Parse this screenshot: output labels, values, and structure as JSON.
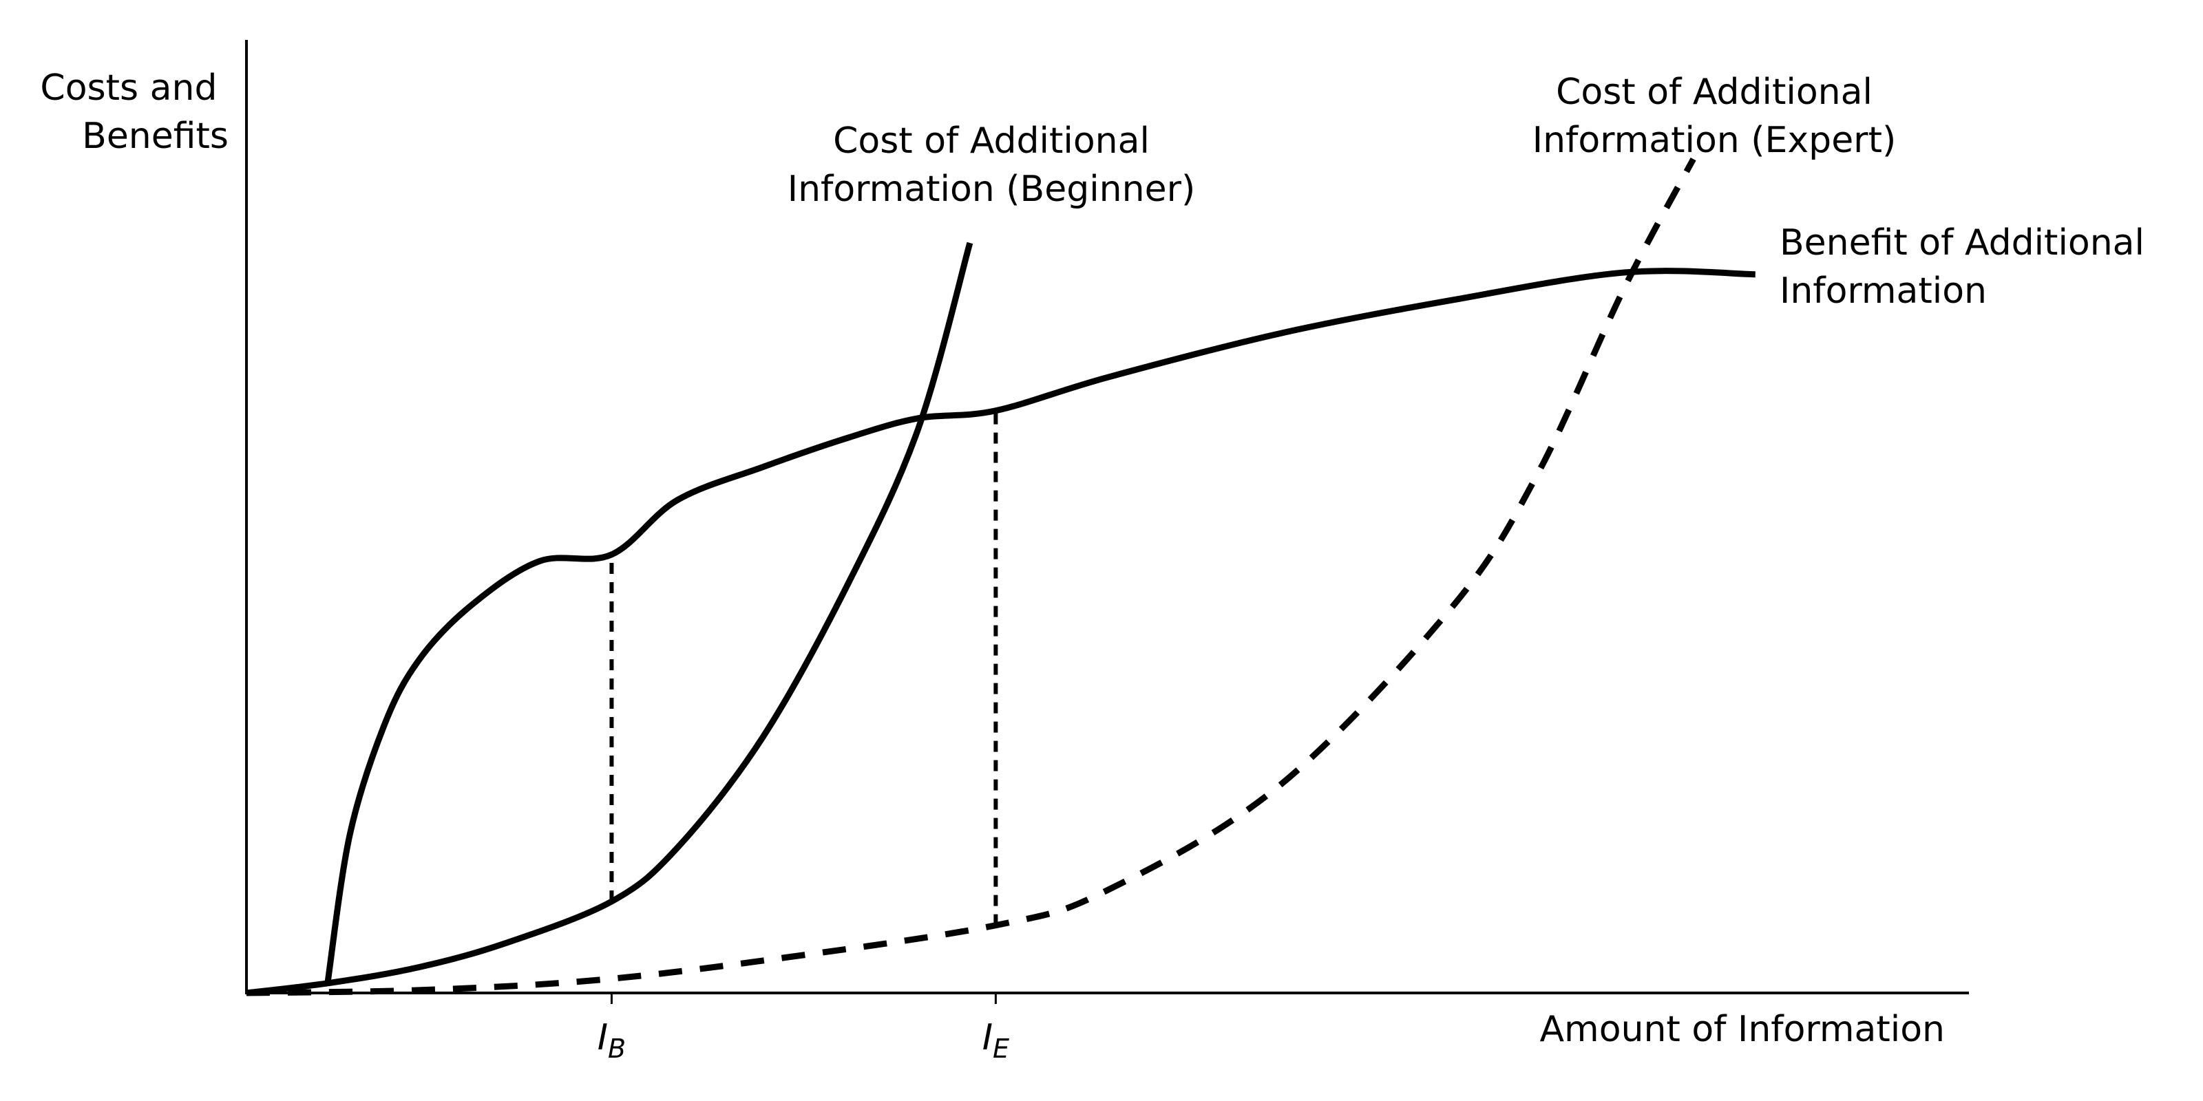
{
  "chart_data": {
    "type": "line",
    "title": "",
    "xlabel": "Amount of Information",
    "ylabel": [
      "Costs and",
      "Benefits"
    ],
    "grid": false,
    "x_range": [
      0,
      10
    ],
    "y_range": [
      0,
      10
    ],
    "x_ticks": [
      {
        "label": "I",
        "sub": "B",
        "x": 2.12
      },
      {
        "label": "I",
        "sub": "E",
        "x": 4.35
      }
    ],
    "series": [
      {
        "name": [
          "Benefit of Additional",
          "Information"
        ],
        "style": "solid",
        "x": [
          0.47,
          0.6,
          0.8,
          1.0,
          1.3,
          1.7,
          2.12,
          2.5,
          3.0,
          3.5,
          3.9,
          4.35,
          5.0,
          6.0,
          7.0,
          8.0,
          8.76
        ],
        "y": [
          0.09,
          1.66,
          2.81,
          3.49,
          4.06,
          4.53,
          4.6,
          5.17,
          5.52,
          5.83,
          6.03,
          6.11,
          6.46,
          6.92,
          7.27,
          7.56,
          7.54
        ]
      },
      {
        "name": [
          "Cost of Additional",
          "Information (Beginner)"
        ],
        "style": "solid",
        "x": [
          0.0,
          0.5,
          1.0,
          1.5,
          2.12,
          2.5,
          3.0,
          3.5,
          3.9,
          4.2
        ],
        "y": [
          0.0,
          0.11,
          0.27,
          0.52,
          0.96,
          1.52,
          2.69,
          4.32,
          5.92,
          7.87
        ]
      },
      {
        "name": [
          "Cost of Additional",
          "Information (Expert)"
        ],
        "style": "dashed",
        "x": [
          0.0,
          1.0,
          2.0,
          3.0,
          4.35,
          5.0,
          6.0,
          7.0,
          7.5,
          8.0,
          8.4
        ],
        "y": [
          0.0,
          0.03,
          0.13,
          0.34,
          0.71,
          1.08,
          2.18,
          4.05,
          5.46,
          7.4,
          8.75
        ]
      }
    ],
    "series_labels": [
      {
        "series": 0,
        "anchor": "start"
      },
      {
        "series": 1,
        "anchor": "middle"
      },
      {
        "series": 2,
        "anchor": "middle"
      }
    ],
    "reference_lines": [
      {
        "x": 2.12,
        "y_from": 0.96,
        "y_to": 4.6,
        "style": "dotted"
      },
      {
        "x": 4.35,
        "y_from": 0.71,
        "y_to": 6.11,
        "style": "dotted"
      }
    ]
  }
}
